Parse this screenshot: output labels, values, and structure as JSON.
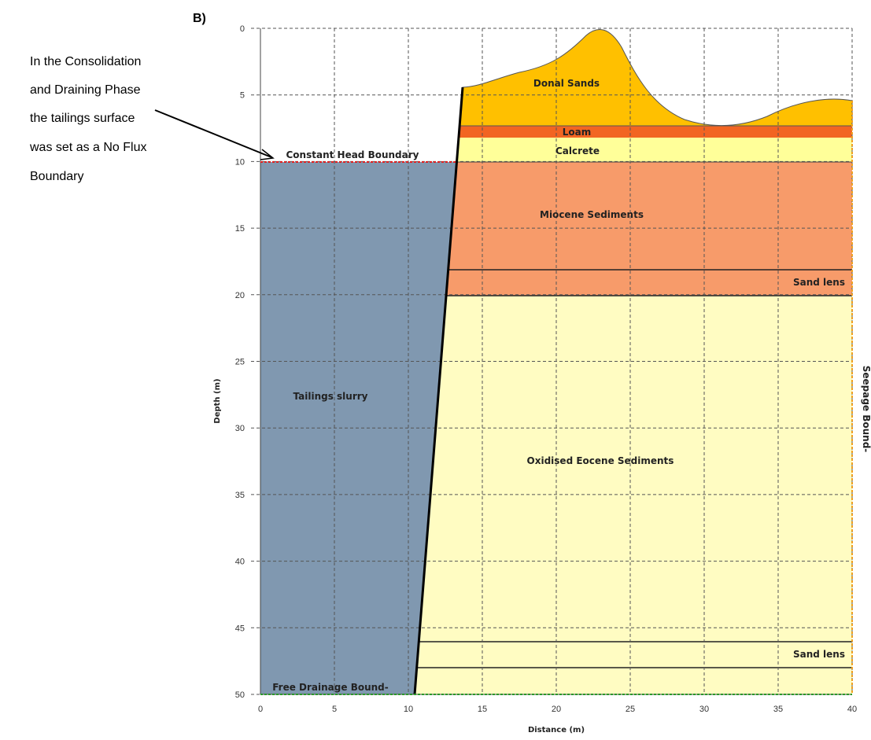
{
  "panel_label": "B)",
  "annotation": [
    "In the Consolidation",
    "and Draining Phase",
    "the tailings surface",
    "was set as a No Flux",
    "Boundary"
  ],
  "axes": {
    "x_label": "Distance (m)",
    "y_label": "Depth (m)",
    "xlim": [
      0,
      40
    ],
    "ylim": [
      0,
      50
    ],
    "xticks": [
      0,
      5,
      10,
      15,
      20,
      25,
      30,
      35,
      40
    ],
    "yticks": [
      0,
      5,
      10,
      15,
      20,
      25,
      30,
      35,
      40,
      45,
      50
    ]
  },
  "regions": {
    "donal_sands": "Donal Sands",
    "loam": "Loam",
    "calcrete": "Calcrete",
    "miocene": "Miocene Sediments",
    "sand_lens_upper": "Sand lens",
    "tailings": "Tailings slurry",
    "eocene": "Oxidised Eocene Sediments",
    "sand_lens_lower": "Sand lens"
  },
  "boundaries": {
    "top": "Constant Head Boundary",
    "bottom": "Free Drainage Bound-",
    "right": "Seepage Bound-"
  }
}
